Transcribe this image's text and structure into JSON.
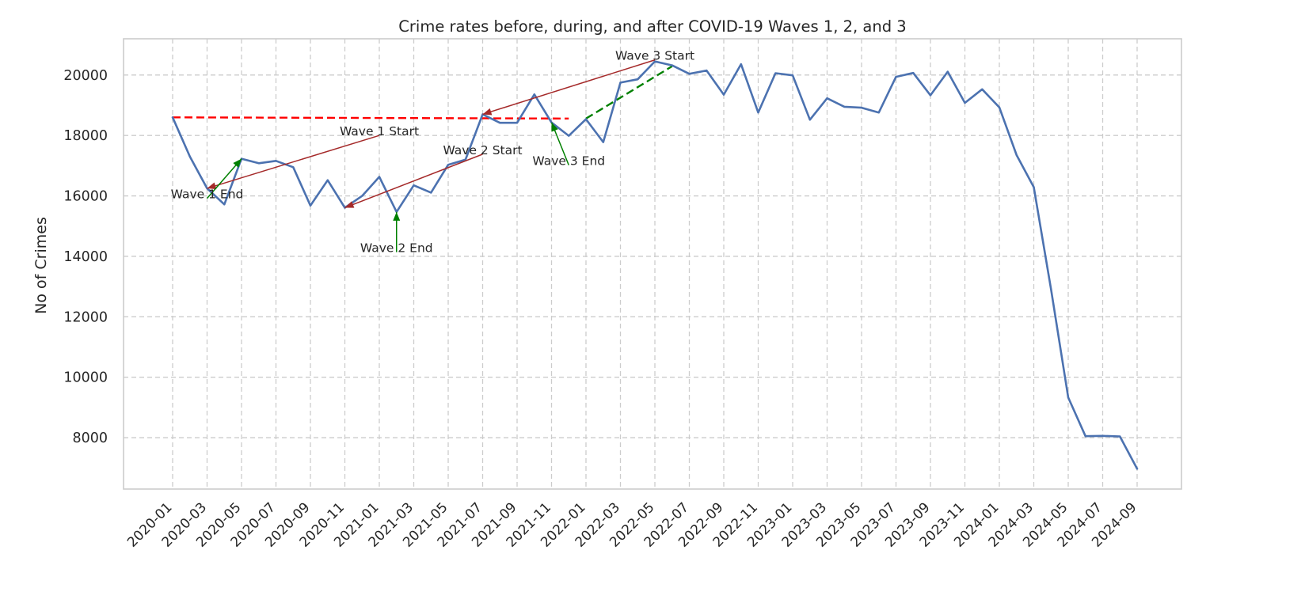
{
  "chart_data": {
    "type": "line",
    "title": "Crime rates before, during, and after COVID-19 Waves 1, 2, and 3",
    "xlabel": "",
    "ylabel": "No of Crimes",
    "ylim": [
      6300,
      21200
    ],
    "yticks": [
      8000,
      10000,
      12000,
      14000,
      16000,
      18000,
      20000
    ],
    "xticks": [
      "2020-01",
      "2020-03",
      "2020-05",
      "2020-07",
      "2020-09",
      "2020-11",
      "2021-01",
      "2021-03",
      "2021-05",
      "2021-07",
      "2021-09",
      "2021-11",
      "2022-01",
      "2022-03",
      "2022-05",
      "2022-07",
      "2022-09",
      "2022-11",
      "2023-01",
      "2023-03",
      "2023-05",
      "2023-07",
      "2023-09",
      "2023-11",
      "2024-01",
      "2024-03",
      "2024-05",
      "2024-07",
      "2024-09"
    ],
    "grid": true,
    "series": [
      {
        "color": "#4c72b0",
        "x": [
          "2020-01",
          "2020-02",
          "2020-03",
          "2020-04",
          "2020-05",
          "2020-06",
          "2020-07",
          "2020-08",
          "2020-09",
          "2020-10",
          "2020-11",
          "2020-12",
          "2021-01",
          "2021-02",
          "2021-03",
          "2021-04",
          "2021-05",
          "2021-06",
          "2021-07",
          "2021-08",
          "2021-09",
          "2021-10",
          "2021-11",
          "2021-12",
          "2022-01",
          "2022-02",
          "2022-03",
          "2022-04",
          "2022-05",
          "2022-06",
          "2022-07",
          "2022-08",
          "2022-09",
          "2022-10",
          "2022-11",
          "2022-12",
          "2023-01",
          "2023-02",
          "2023-03",
          "2023-04",
          "2023-05",
          "2023-06",
          "2023-07",
          "2023-08",
          "2023-09",
          "2023-10",
          "2023-11",
          "2023-12",
          "2024-01",
          "2024-02",
          "2024-03",
          "2024-04",
          "2024-05",
          "2024-06",
          "2024-07",
          "2024-08",
          "2024-09"
        ],
        "values": [
          18600,
          17300,
          16250,
          15720,
          17230,
          17080,
          17160,
          16950,
          15680,
          16520,
          15610,
          16000,
          16630,
          15470,
          16350,
          16110,
          17030,
          17200,
          18700,
          18420,
          18420,
          19360,
          18430,
          17990,
          18540,
          17780,
          19750,
          19860,
          20450,
          20320,
          20040,
          20150,
          19350,
          20360,
          18760,
          20060,
          19990,
          18520,
          19230,
          18950,
          18920,
          18760,
          19940,
          20070,
          19330,
          20110,
          19080,
          19530,
          18930,
          17350,
          16290,
          12910,
          9330,
          8050,
          8060,
          8040,
          6970
        ]
      }
    ],
    "reference_lines": [
      {
        "color": "#ff0000",
        "style": "dashed",
        "from": {
          "x": "2020-01",
          "y": 18600
        },
        "to": {
          "x": "2021-12",
          "y": 18560
        }
      },
      {
        "color": "#008000",
        "style": "dashed",
        "from": {
          "x": "2022-01",
          "y": 18560
        },
        "to": {
          "x": "2022-06",
          "y": 20290
        }
      }
    ],
    "annotations": [
      {
        "text": "Wave 1 Start",
        "arrow_color": "#a52a2a",
        "text_at": {
          "x": "2021-01",
          "y": 18000
        },
        "points_to": {
          "x": "2020-03",
          "y": 16250
        }
      },
      {
        "text": "Wave 1 End",
        "arrow_color": "#008000",
        "text_at": {
          "x": "2020-03",
          "y": 15920
        },
        "points_to": {
          "x": "2020-05",
          "y": 17230
        }
      },
      {
        "text": "Wave 2 Start",
        "arrow_color": "#a52a2a",
        "text_at": {
          "x": "2021-07",
          "y": 17380
        },
        "points_to": {
          "x": "2020-11",
          "y": 15610
        }
      },
      {
        "text": "Wave 2 End",
        "arrow_color": "#008000",
        "text_at": {
          "x": "2021-02",
          "y": 14140
        },
        "points_to": {
          "x": "2021-02",
          "y": 15470
        }
      },
      {
        "text": "Wave 3 Start",
        "arrow_color": "#a52a2a",
        "text_at": {
          "x": "2022-05",
          "y": 20500
        },
        "points_to": {
          "x": "2021-07",
          "y": 18700
        }
      },
      {
        "text": "Wave 3 End",
        "arrow_color": "#008000",
        "text_at": {
          "x": "2021-12",
          "y": 17020
        },
        "points_to": {
          "x": "2021-11",
          "y": 18430
        }
      }
    ]
  }
}
